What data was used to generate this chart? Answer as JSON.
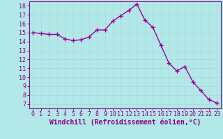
{
  "x": [
    0,
    1,
    2,
    3,
    4,
    5,
    6,
    7,
    8,
    9,
    10,
    11,
    12,
    13,
    14,
    15,
    16,
    17,
    18,
    19,
    20,
    21,
    22,
    23
  ],
  "y": [
    15.0,
    14.9,
    14.8,
    14.8,
    14.3,
    14.1,
    14.2,
    14.5,
    15.3,
    15.3,
    16.3,
    16.9,
    17.5,
    18.2,
    16.4,
    15.6,
    13.6,
    11.6,
    10.7,
    11.2,
    9.5,
    8.5,
    7.5,
    7.1
  ],
  "line_color": "#990099",
  "marker": "+",
  "marker_size": 4,
  "linewidth": 1.0,
  "xlabel": "Windchill (Refroidissement éolien,°C)",
  "xlabel_fontsize": 7,
  "bg_color": "#b3e8e8",
  "grid_color": "#aadddd",
  "tick_color": "#880088",
  "label_color": "#880088",
  "xlim": [
    -0.5,
    23.5
  ],
  "ylim": [
    6.5,
    18.5
  ],
  "yticks": [
    7,
    8,
    9,
    10,
    11,
    12,
    13,
    14,
    15,
    16,
    17,
    18
  ],
  "xticks": [
    0,
    1,
    2,
    3,
    4,
    5,
    6,
    7,
    8,
    9,
    10,
    11,
    12,
    13,
    14,
    15,
    16,
    17,
    18,
    19,
    20,
    21,
    22,
    23
  ],
  "tick_fontsize": 6,
  "spine_color": "#880088"
}
